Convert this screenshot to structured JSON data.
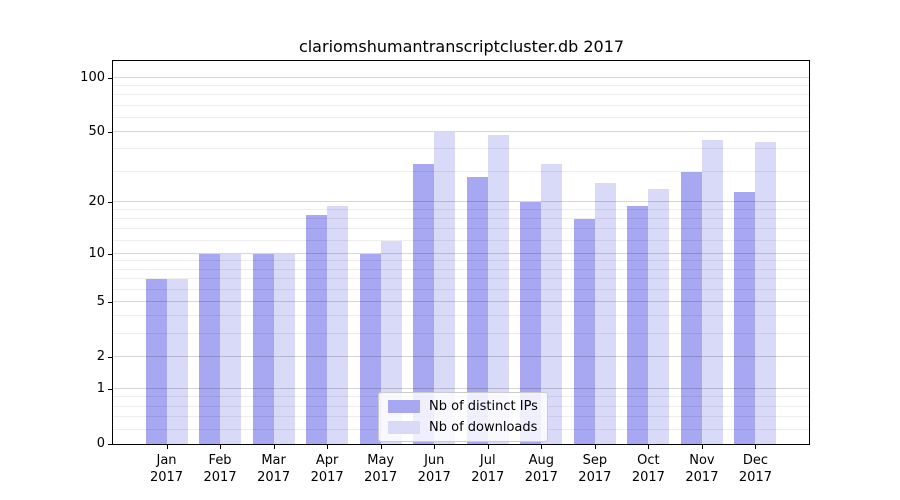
{
  "title": "clariomshumantranscriptcluster.db 2017",
  "colors": {
    "distinct_ips_bar": "#a7a7f2",
    "downloads_bar": "#d9d9f8",
    "axis": "#000000",
    "grid_major": "#d9d9d9",
    "grid_minor": "#ededed",
    "legend_border": "#cccccc"
  },
  "y_axis": {
    "scale": "log1p",
    "major_ticks": [
      0,
      1,
      2,
      5,
      10,
      20,
      50,
      100
    ],
    "major_tick_labels": [
      "0",
      "1",
      "2",
      "5",
      "10",
      "20",
      "50",
      "100"
    ],
    "minor_ticks": [
      0.2,
      0.4,
      0.6,
      0.8,
      3,
      4,
      6,
      7,
      8,
      9,
      12,
      14,
      16,
      18,
      30,
      40,
      60,
      70,
      80,
      90
    ]
  },
  "x_axis": {
    "months": [
      "Jan",
      "Feb",
      "Mar",
      "Apr",
      "May",
      "Jun",
      "Jul",
      "Aug",
      "Sep",
      "Oct",
      "Nov",
      "Dec"
    ],
    "year": "2017"
  },
  "legend": {
    "items": [
      {
        "label": "Nb of distinct IPs",
        "color_key": "distinct_ips_bar"
      },
      {
        "label": "Nb of downloads",
        "color_key": "downloads_bar"
      }
    ]
  },
  "chart_data": {
    "type": "bar",
    "title": "clariomshumantranscriptcluster.db 2017",
    "xlabel": "",
    "ylabel": "",
    "scale": "log1p",
    "grid": true,
    "legend_position": "lower right inside",
    "ylim": [
      0,
      127
    ],
    "yticks": [
      0,
      1,
      2,
      5,
      10,
      20,
      50,
      100
    ],
    "categories": [
      "Jan 2017",
      "Feb 2017",
      "Mar 2017",
      "Apr 2017",
      "May 2017",
      "Jun 2017",
      "Jul 2017",
      "Aug 2017",
      "Sep 2017",
      "Oct 2017",
      "Nov 2017",
      "Dec 2017"
    ],
    "series": [
      {
        "name": "Nb of distinct IPs",
        "values": [
          7,
          10,
          10,
          17,
          10,
          33,
          28,
          20,
          16,
          19,
          30,
          23
        ]
      },
      {
        "name": "Nb of downloads",
        "values": [
          7,
          10,
          10,
          19,
          12,
          50,
          48,
          33,
          26,
          24,
          45,
          44
        ]
      }
    ]
  }
}
